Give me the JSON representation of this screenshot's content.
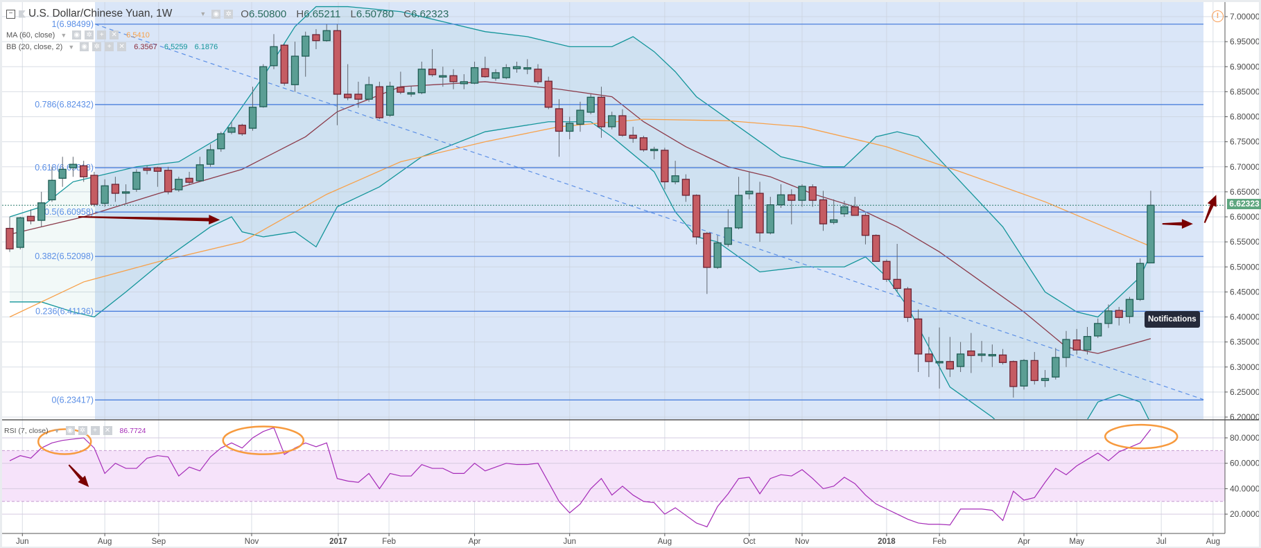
{
  "header": {
    "symbol_title": "U.S. Dollar/Chinese Yuan, 1W",
    "ohlc": {
      "o_key": "O",
      "o": "6.50800",
      "h_key": "H",
      "h": "6.65211",
      "l_key": "L",
      "l": "6.50780",
      "c_key": "C",
      "c": "6.62323"
    }
  },
  "indicators": {
    "ma": {
      "label": "MA (60, close)",
      "value": "6.5410",
      "color": "#f7a14a"
    },
    "bb": {
      "label": "BB (20, close, 2)",
      "mid": "6.3567",
      "upper": "6.5259",
      "lower": "6.1876",
      "mid_color": "#8b3a4a",
      "band_color": "#13959a"
    },
    "rsi": {
      "label": "RSI (7, close)",
      "value": "86.7724",
      "color": "#a52bb8"
    }
  },
  "icons": {
    "collapse": "minus-box-icon",
    "eye": "eye-icon",
    "gear": "gear-icon",
    "plus": "plus-icon",
    "close": "close-icon",
    "alert": "alert-icon"
  },
  "notifications_tooltip": "Notifications",
  "alert_glyph": "!",
  "price_axis": {
    "ticks": [
      "7.00000",
      "6.95000",
      "6.90000",
      "6.85000",
      "6.80000",
      "6.75000",
      "6.70000",
      "6.65000",
      "6.60000",
      "6.55000",
      "6.50000",
      "6.45000",
      "6.40000",
      "6.35000",
      "6.30000",
      "6.25000",
      "6.20000"
    ],
    "last_price": "6.62323"
  },
  "rsi_axis": {
    "ticks": [
      "80.0000",
      "60.0000",
      "40.0000",
      "20.0000"
    ]
  },
  "time_axis": [
    {
      "label": "Jun",
      "index": 1.2,
      "bold": false
    },
    {
      "label": "Aug",
      "index": 9,
      "bold": false
    },
    {
      "label": "Sep",
      "index": 14.1,
      "bold": false
    },
    {
      "label": "Nov",
      "index": 22.9,
      "bold": false
    },
    {
      "label": "2017",
      "index": 31.1,
      "bold": true
    },
    {
      "label": "Feb",
      "index": 35.9,
      "bold": false
    },
    {
      "label": "Apr",
      "index": 44,
      "bold": false
    },
    {
      "label": "Jun",
      "index": 53,
      "bold": false
    },
    {
      "label": "Aug",
      "index": 62,
      "bold": false
    },
    {
      "label": "Oct",
      "index": 70,
      "bold": false
    },
    {
      "label": "Nov",
      "index": 75,
      "bold": false
    },
    {
      "label": "2018",
      "index": 83,
      "bold": true
    },
    {
      "label": "Feb",
      "index": 88,
      "bold": false
    },
    {
      "label": "Apr",
      "index": 96,
      "bold": false
    },
    {
      "label": "May",
      "index": 101,
      "bold": false
    },
    {
      "label": "Jul",
      "index": 109,
      "bold": false
    },
    {
      "label": "Aug",
      "index": 113.9,
      "bold": false
    }
  ],
  "fibonacci": [
    {
      "label": "1(6.98499)",
      "value": 6.98499
    },
    {
      "label": "0.786(6.82432)",
      "value": 6.82432
    },
    {
      "label": "0.618(6.69818)",
      "value": 6.69818
    },
    {
      "label": "0.5(6.60958)",
      "value": 6.60958
    },
    {
      "label": "0.382(6.52098)",
      "value": 6.52098
    },
    {
      "label": "0.236(6.41136)",
      "value": 6.41136
    },
    {
      "label": "0(6.23417)",
      "value": 6.23417
    }
  ],
  "colors": {
    "up": "#5b9e94",
    "up_border": "#1f5d54",
    "down": "#c55c63",
    "down_border": "#6b2232",
    "fib": "#4a7fdc",
    "fib_label": "#5b8fe6",
    "region": "#dae6f8",
    "annotation": "#7a0000",
    "ellipse": "#f79a3e"
  },
  "chart_data": {
    "type": "candlestick",
    "title": "U.S. Dollar/Chinese Yuan, 1W",
    "ylim": [
      6.2,
      7.0
    ],
    "rsi_ylim": [
      0,
      100
    ],
    "rsi_bands": [
      70,
      30
    ],
    "ohlc": [
      [
        6.577,
        6.6,
        6.53,
        6.536
      ],
      [
        6.539,
        6.6,
        6.535,
        6.598
      ],
      [
        6.601,
        6.615,
        6.585,
        6.592
      ],
      [
        6.593,
        6.65,
        6.58,
        6.628
      ],
      [
        6.634,
        6.7,
        6.63,
        6.673
      ],
      [
        6.677,
        6.72,
        6.66,
        6.695
      ],
      [
        6.698,
        6.72,
        6.68,
        6.705
      ],
      [
        6.702,
        6.712,
        6.67,
        6.68
      ],
      [
        6.683,
        6.69,
        6.62,
        6.625
      ],
      [
        6.627,
        6.675,
        6.62,
        6.662
      ],
      [
        6.665,
        6.68,
        6.63,
        6.647
      ],
      [
        6.65,
        6.665,
        6.625,
        6.65
      ],
      [
        6.655,
        6.695,
        6.65,
        6.689
      ],
      [
        6.697,
        6.702,
        6.685,
        6.693
      ],
      [
        6.698,
        6.7,
        6.66,
        6.691
      ],
      [
        6.693,
        6.7,
        6.645,
        6.65
      ],
      [
        6.654,
        6.68,
        6.65,
        6.675
      ],
      [
        6.677,
        6.69,
        6.665,
        6.669
      ],
      [
        6.672,
        6.72,
        6.67,
        6.704
      ],
      [
        6.705,
        6.745,
        6.7,
        6.734
      ],
      [
        6.736,
        6.77,
        6.73,
        6.766
      ],
      [
        6.769,
        6.79,
        6.765,
        6.778
      ],
      [
        6.783,
        6.786,
        6.762,
        6.766
      ],
      [
        6.777,
        6.86,
        6.772,
        6.819
      ],
      [
        6.82,
        6.905,
        6.818,
        6.9
      ],
      [
        6.902,
        6.965,
        6.895,
        6.94
      ],
      [
        6.943,
        6.945,
        6.862,
        6.867
      ],
      [
        6.864,
        6.95,
        6.85,
        6.921
      ],
      [
        6.921,
        6.97,
        6.88,
        6.961
      ],
      [
        6.964,
        6.975,
        6.935,
        6.952
      ],
      [
        6.952,
        6.985,
        6.95,
        6.972
      ],
      [
        6.972,
        6.985,
        6.783,
        6.845
      ],
      [
        6.845,
        6.905,
        6.833,
        6.838
      ],
      [
        6.845,
        6.87,
        6.818,
        6.835
      ],
      [
        6.835,
        6.88,
        6.83,
        6.864
      ],
      [
        6.86,
        6.87,
        6.795,
        6.798
      ],
      [
        6.803,
        6.87,
        6.8,
        6.861
      ],
      [
        6.859,
        6.89,
        6.845,
        6.849
      ],
      [
        6.848,
        6.862,
        6.84,
        6.848
      ],
      [
        6.848,
        6.91,
        6.845,
        6.895
      ],
      [
        6.895,
        6.935,
        6.88,
        6.884
      ],
      [
        6.882,
        6.9,
        6.86,
        6.882
      ],
      [
        6.882,
        6.895,
        6.855,
        6.87
      ],
      [
        6.866,
        6.885,
        6.855,
        6.87
      ],
      [
        6.867,
        6.91,
        6.865,
        6.898
      ],
      [
        6.896,
        6.92,
        6.878,
        6.88
      ],
      [
        6.877,
        6.895,
        6.872,
        6.888
      ],
      [
        6.878,
        6.905,
        6.875,
        6.898
      ],
      [
        6.896,
        6.91,
        6.888,
        6.9
      ],
      [
        6.898,
        6.915,
        6.885,
        6.898
      ],
      [
        6.895,
        6.905,
        6.865,
        6.87
      ],
      [
        6.871,
        6.88,
        6.815,
        6.819
      ],
      [
        6.816,
        6.835,
        6.72,
        6.771
      ],
      [
        6.771,
        6.8,
        6.755,
        6.787
      ],
      [
        6.785,
        6.83,
        6.77,
        6.813
      ],
      [
        6.809,
        6.845,
        6.805,
        6.839
      ],
      [
        6.839,
        6.86,
        6.758,
        6.78
      ],
      [
        6.78,
        6.81,
        6.775,
        6.802
      ],
      [
        6.802,
        6.815,
        6.76,
        6.763
      ],
      [
        6.763,
        6.78,
        6.748,
        6.757
      ],
      [
        6.758,
        6.762,
        6.73,
        6.734
      ],
      [
        6.735,
        6.74,
        6.715,
        6.735
      ],
      [
        6.733,
        6.738,
        6.655,
        6.67
      ],
      [
        6.67,
        6.712,
        6.665,
        6.682
      ],
      [
        6.675,
        6.685,
        6.63,
        6.643
      ],
      [
        6.643,
        6.645,
        6.545,
        6.56
      ],
      [
        6.567,
        6.57,
        6.446,
        6.499
      ],
      [
        6.499,
        6.563,
        6.496,
        6.548
      ],
      [
        6.545,
        6.615,
        6.54,
        6.578
      ],
      [
        6.578,
        6.68,
        6.575,
        6.643
      ],
      [
        6.646,
        6.69,
        6.635,
        6.651
      ],
      [
        6.647,
        6.67,
        6.55,
        6.568
      ],
      [
        6.568,
        6.64,
        6.565,
        6.624
      ],
      [
        6.624,
        6.665,
        6.618,
        6.644
      ],
      [
        6.644,
        6.655,
        6.585,
        6.633
      ],
      [
        6.633,
        6.665,
        6.62,
        6.661
      ],
      [
        6.66,
        6.665,
        6.62,
        6.633
      ],
      [
        6.634,
        6.652,
        6.572,
        6.586
      ],
      [
        6.589,
        6.635,
        6.585,
        6.594
      ],
      [
        6.606,
        6.632,
        6.6,
        6.62
      ],
      [
        6.62,
        6.64,
        6.605,
        6.603
      ],
      [
        6.603,
        6.608,
        6.545,
        6.563
      ],
      [
        6.563,
        6.565,
        6.51,
        6.511
      ],
      [
        6.511,
        6.515,
        6.47,
        6.475
      ],
      [
        6.475,
        6.546,
        6.45,
        6.457
      ],
      [
        6.456,
        6.46,
        6.39,
        6.399
      ],
      [
        6.396,
        6.415,
        6.29,
        6.326
      ],
      [
        6.326,
        6.36,
        6.28,
        6.311
      ],
      [
        6.311,
        6.379,
        6.257,
        6.311
      ],
      [
        6.311,
        6.36,
        6.28,
        6.296
      ],
      [
        6.301,
        6.35,
        6.29,
        6.326
      ],
      [
        6.332,
        6.368,
        6.288,
        6.323
      ],
      [
        6.326,
        6.352,
        6.31,
        6.326
      ],
      [
        6.325,
        6.345,
        6.3,
        6.325
      ],
      [
        6.324,
        6.336,
        6.305,
        6.309
      ],
      [
        6.311,
        6.313,
        6.239,
        6.261
      ],
      [
        6.262,
        6.316,
        6.255,
        6.313
      ],
      [
        6.313,
        6.33,
        6.265,
        6.273
      ],
      [
        6.273,
        6.294,
        6.26,
        6.277
      ],
      [
        6.28,
        6.338,
        6.275,
        6.319
      ],
      [
        6.319,
        6.372,
        6.3,
        6.355
      ],
      [
        6.354,
        6.376,
        6.325,
        6.334
      ],
      [
        6.334,
        6.38,
        6.325,
        6.361
      ],
      [
        6.362,
        6.397,
        6.358,
        6.387
      ],
      [
        6.387,
        6.425,
        6.378,
        6.412
      ],
      [
        6.413,
        6.42,
        6.383,
        6.399
      ],
      [
        6.401,
        6.44,
        6.387,
        6.435
      ],
      [
        6.435,
        6.517,
        6.432,
        6.507
      ],
      [
        6.508,
        6.65211,
        6.5078,
        6.62323
      ]
    ],
    "ma60": [
      [
        0,
        6.4
      ],
      [
        7,
        6.47
      ],
      [
        14,
        6.51
      ],
      [
        22,
        6.55
      ],
      [
        30,
        6.645
      ],
      [
        37,
        6.71
      ],
      [
        45,
        6.75
      ],
      [
        52,
        6.78
      ],
      [
        60,
        6.795
      ],
      [
        68,
        6.792
      ],
      [
        75,
        6.78
      ],
      [
        83,
        6.74
      ],
      [
        90,
        6.69
      ],
      [
        98,
        6.63
      ],
      [
        108,
        6.541
      ]
    ],
    "bb_mid": [
      [
        0,
        6.565
      ],
      [
        7,
        6.6
      ],
      [
        14,
        6.646
      ],
      [
        22,
        6.695
      ],
      [
        28,
        6.76
      ],
      [
        31,
        6.81
      ],
      [
        37,
        6.86
      ],
      [
        45,
        6.87
      ],
      [
        52,
        6.855
      ],
      [
        57,
        6.84
      ],
      [
        60,
        6.79
      ],
      [
        64,
        6.74
      ],
      [
        68,
        6.7
      ],
      [
        72,
        6.68
      ],
      [
        76,
        6.646
      ],
      [
        80,
        6.62
      ],
      [
        84,
        6.58
      ],
      [
        88,
        6.53
      ],
      [
        92,
        6.47
      ],
      [
        96,
        6.41
      ],
      [
        100,
        6.34
      ],
      [
        103,
        6.327
      ],
      [
        108,
        6.3567
      ]
    ],
    "bb_upper": [
      [
        0,
        6.6
      ],
      [
        3,
        6.62
      ],
      [
        6,
        6.67
      ],
      [
        8,
        6.68
      ],
      [
        12,
        6.7
      ],
      [
        16,
        6.71
      ],
      [
        20,
        6.76
      ],
      [
        24,
        6.88
      ],
      [
        27,
        6.98
      ],
      [
        29,
        7.02
      ],
      [
        32,
        7.02
      ],
      [
        37,
        7.01
      ],
      [
        41,
        6.99
      ],
      [
        45,
        6.97
      ],
      [
        49,
        6.96
      ],
      [
        53,
        6.94
      ],
      [
        57,
        6.94
      ],
      [
        59,
        6.96
      ],
      [
        61,
        6.93
      ],
      [
        63,
        6.89
      ],
      [
        65,
        6.84
      ],
      [
        69,
        6.78
      ],
      [
        73,
        6.72
      ],
      [
        77,
        6.7
      ],
      [
        79,
        6.7
      ],
      [
        82,
        6.76
      ],
      [
        84,
        6.77
      ],
      [
        86,
        6.76
      ],
      [
        90,
        6.67
      ],
      [
        94,
        6.58
      ],
      [
        98,
        6.45
      ],
      [
        101,
        6.41
      ],
      [
        103,
        6.4
      ],
      [
        105,
        6.44
      ],
      [
        107,
        6.48
      ],
      [
        108,
        6.5259
      ]
    ],
    "bb_lower": [
      [
        0,
        6.43
      ],
      [
        3,
        6.43
      ],
      [
        6,
        6.41
      ],
      [
        8,
        6.4
      ],
      [
        11,
        6.45
      ],
      [
        15,
        6.52
      ],
      [
        19,
        6.58
      ],
      [
        21,
        6.6
      ],
      [
        22,
        6.57
      ],
      [
        24,
        6.56
      ],
      [
        27,
        6.57
      ],
      [
        29,
        6.54
      ],
      [
        31,
        6.62
      ],
      [
        35,
        6.66
      ],
      [
        39,
        6.72
      ],
      [
        45,
        6.77
      ],
      [
        51,
        6.79
      ],
      [
        55,
        6.79
      ],
      [
        57,
        6.76
      ],
      [
        61,
        6.69
      ],
      [
        63,
        6.61
      ],
      [
        65,
        6.56
      ],
      [
        67,
        6.55
      ],
      [
        71,
        6.49
      ],
      [
        75,
        6.5
      ],
      [
        79,
        6.5
      ],
      [
        81,
        6.52
      ],
      [
        83,
        6.48
      ],
      [
        85,
        6.42
      ],
      [
        87,
        6.34
      ],
      [
        89,
        6.26
      ],
      [
        93,
        6.2
      ],
      [
        95,
        6.16
      ],
      [
        101,
        6.16
      ],
      [
        103,
        6.23
      ],
      [
        105,
        6.245
      ],
      [
        107,
        6.23
      ],
      [
        108,
        6.1876
      ]
    ],
    "rsi": [
      62,
      66,
      64,
      72,
      76,
      78,
      79,
      80,
      72,
      52,
      60,
      56,
      56,
      64,
      66,
      65,
      50,
      57,
      54,
      65,
      72,
      76,
      72,
      80,
      85,
      88,
      67,
      72,
      76,
      73,
      76,
      48,
      46,
      45,
      52,
      40,
      52,
      50,
      50,
      59,
      56,
      56,
      52,
      52,
      60,
      54,
      57,
      60,
      59,
      59,
      60,
      45,
      30,
      21,
      28,
      40,
      48,
      35,
      42,
      35,
      30,
      29,
      20,
      25,
      19,
      13,
      10,
      26,
      36,
      48,
      49,
      36,
      48,
      51,
      50,
      55,
      48,
      40,
      42,
      49,
      44,
      35,
      28,
      24,
      20,
      16,
      13,
      12,
      12,
      11.5,
      24,
      24,
      24,
      23,
      15,
      38,
      31,
      33,
      45,
      56,
      51,
      58,
      63,
      68,
      62,
      69,
      72.5,
      76,
      86.7724
    ],
    "trendline": [
      [
        8.07,
        6.985
      ],
      [
        113,
        6.235
      ]
    ],
    "arrows": [
      {
        "pane": "price",
        "from": [
          6.5,
          6.6
        ],
        "to": [
          19.9,
          6.594
        ]
      },
      {
        "pane": "price",
        "from": [
          109.1,
          6.586
        ],
        "to": [
          112,
          6.586
        ]
      },
      {
        "pane": "price",
        "from": [
          113.1,
          6.588
        ],
        "to": [
          114.2,
          6.644
        ]
      },
      {
        "pane": "rsi",
        "from": [
          5.6,
          58.7
        ],
        "to": [
          7.5,
          41.3
        ]
      }
    ],
    "ellipses": [
      [
        5.2,
        77
      ],
      [
        24,
        78
      ],
      [
        107.1,
        81
      ]
    ]
  }
}
